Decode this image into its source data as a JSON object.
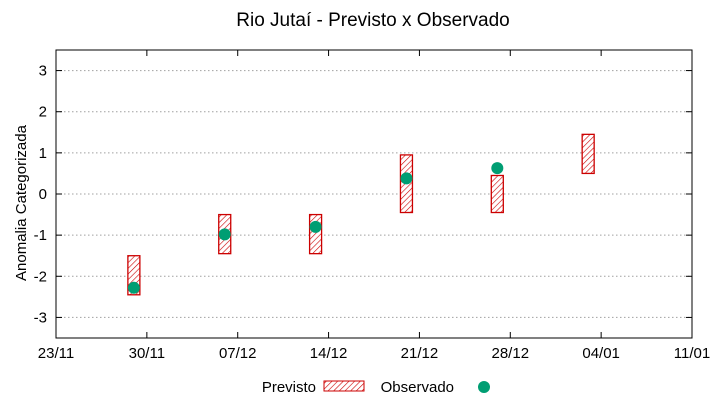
{
  "chart_data": {
    "type": "floating-bar-with-points",
    "title": "Rio Jutaí - Previsto x Observado",
    "xlabel": "",
    "ylabel": "Anomalia Categorizada",
    "ylim": [
      -3.5,
      3.5
    ],
    "xlim_days_labels": [
      "23/11",
      "30/11",
      "07/12",
      "14/12",
      "21/12",
      "28/12",
      "04/01",
      "11/01"
    ],
    "yticks": [
      -3,
      -2,
      -1,
      0,
      1,
      2,
      3
    ],
    "grid": true,
    "legend": {
      "placement": "bottom-center",
      "previsto_label": "Previsto",
      "observado_label": "Observado"
    },
    "colors": {
      "previsto": "#cc0000",
      "observado": "#009e73",
      "grid": "#a0a0a0"
    },
    "previsto": [
      {
        "date": "29/11",
        "low": -2.45,
        "high": -1.5
      },
      {
        "date": "06/12",
        "low": -1.45,
        "high": -0.5
      },
      {
        "date": "13/12",
        "low": -1.45,
        "high": -0.5
      },
      {
        "date": "20/12",
        "low": -0.45,
        "high": 0.95
      },
      {
        "date": "27/12",
        "low": -0.45,
        "high": 0.45
      },
      {
        "date": "03/01",
        "low": 0.5,
        "high": 1.45
      }
    ],
    "observado": [
      {
        "date": "29/11",
        "value": -2.28
      },
      {
        "date": "06/12",
        "value": -0.98
      },
      {
        "date": "13/12",
        "value": -0.8
      },
      {
        "date": "20/12",
        "value": 0.38
      },
      {
        "date": "27/12",
        "value": 0.63
      }
    ]
  }
}
